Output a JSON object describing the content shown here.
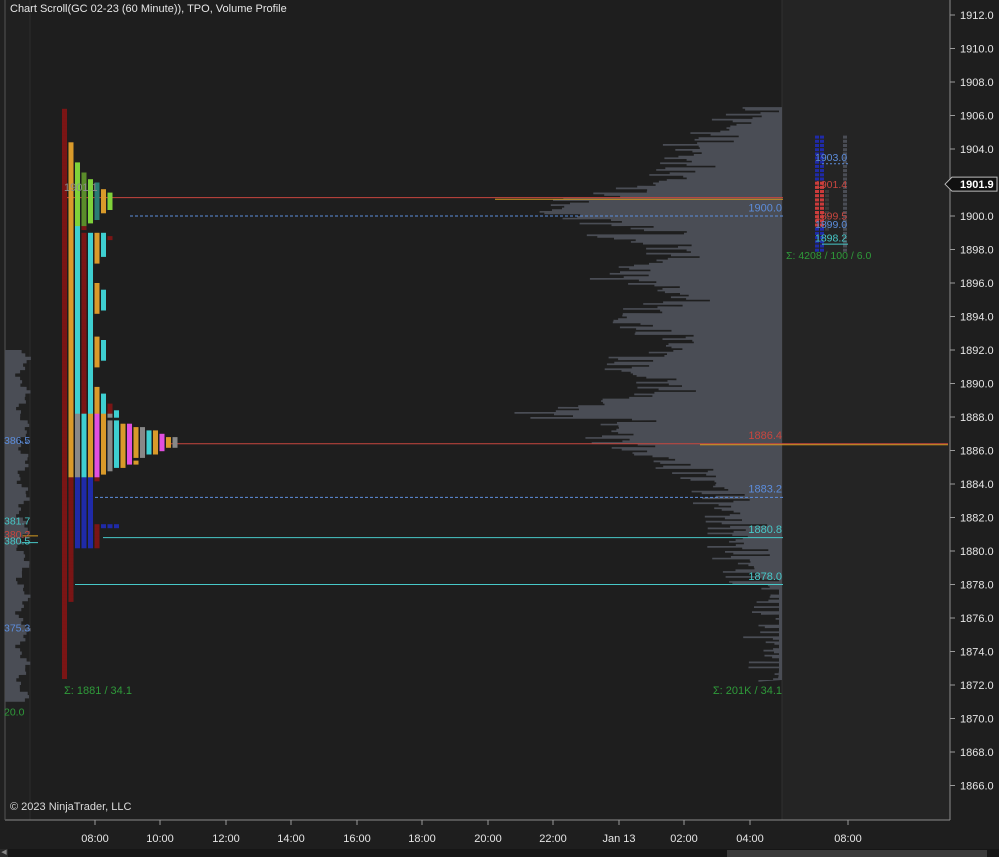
{
  "title": "Chart Scroll(GC 02-23 (60 Minute)), TPO, Volume Profile",
  "copyright": "© 2023 NinjaTrader, LLC",
  "colors": {
    "background": "#1e1e1e",
    "panel_right": "#242424",
    "volume_profile": "#4a4d55",
    "poc_line": "#c8463f",
    "value_area_line": "#5c8ddc",
    "aqua_line": "#47c8c8",
    "orange_line": "#d49a20",
    "sigma_text": "#2f9a3a"
  },
  "price_axis": {
    "ticks": [
      "1912.0",
      "1910.0",
      "1908.0",
      "1906.0",
      "1904.0",
      "1902.0",
      "1900.0",
      "1898.0",
      "1896.0",
      "1894.0",
      "1892.0",
      "1890.0",
      "1888.0",
      "1886.0",
      "1884.0",
      "1882.0",
      "1880.0",
      "1878.0",
      "1876.0",
      "1874.0",
      "1872.0",
      "1870.0",
      "1868.0",
      "1866.0"
    ],
    "current_price": "1901.9"
  },
  "time_axis": {
    "ticks": [
      "08:00",
      "10:00",
      "12:00",
      "14:00",
      "16:00",
      "18:00",
      "20:00",
      "22:00",
      "Jan 13",
      "02:00",
      "04:00",
      "08:00"
    ]
  },
  "left_profile": {
    "labels": [
      {
        "text": "386.5",
        "color": "#5c8ddc",
        "price": 1886.5
      },
      {
        "text": "381.7",
        "color": "#47c8c8",
        "price": 1881.7
      },
      {
        "text": "380.2",
        "color": "#c8463f",
        "price": 1880.9
      },
      {
        "text": "380.5",
        "color": "#47c8c8",
        "price": 1880.5
      },
      {
        "text": "375.3",
        "color": "#5c8ddc",
        "price": 1875.3
      },
      {
        "text": "20.0",
        "color": "#2f9a3a",
        "price": 1870.3
      }
    ]
  },
  "main_tpo": {
    "label_1901": {
      "text": "1901.1",
      "price": 1901.6
    },
    "sigma": "Σ: 1881 / 34.1"
  },
  "volume_profile": {
    "labels": [
      {
        "text": "1900.0",
        "color": "#5c8ddc",
        "price": 1900.4
      },
      {
        "text": "1886.4",
        "color": "#c8463f",
        "price": 1886.8
      },
      {
        "text": "1883.2",
        "color": "#5c8ddc",
        "price": 1883.6
      },
      {
        "text": "1880.8",
        "color": "#47c8c8",
        "price": 1881.2
      },
      {
        "text": "1878.0",
        "color": "#47c8c8",
        "price": 1878.4
      }
    ],
    "sigma": "Σ: 201K / 34.1"
  },
  "right_tpo": {
    "labels": [
      {
        "text": "1903.0",
        "color": "#5c8ddc",
        "price": 1903.4
      },
      {
        "text": "1901.4",
        "color": "#c8463f",
        "price": 1901.8
      },
      {
        "text": "1899.5",
        "color": "#c8463f",
        "price": 1899.9
      },
      {
        "text": "1899.0",
        "color": "#5c8ddc",
        "price": 1899.4
      },
      {
        "text": "1898.2",
        "color": "#47c8c8",
        "price": 1898.6
      }
    ],
    "sigma": "Σ: 4208 / 100 / 6.0"
  }
}
